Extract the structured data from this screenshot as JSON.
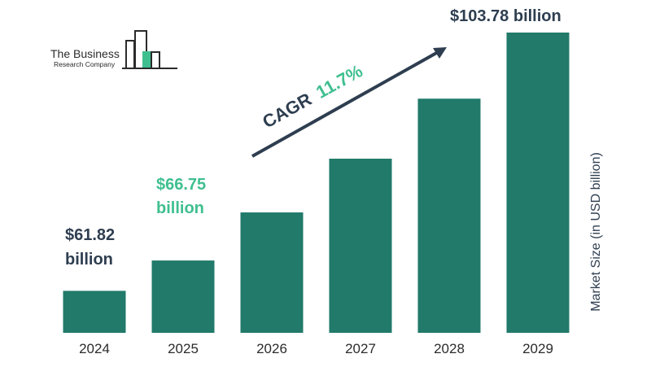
{
  "logo": {
    "line1": "The Business",
    "line2": "Research Company"
  },
  "chart_data": {
    "type": "bar",
    "categories": [
      "2024",
      "2025",
      "2026",
      "2027",
      "2028",
      "2029"
    ],
    "values": [
      61.82,
      66.75,
      74.56,
      83.29,
      93.04,
      103.78
    ],
    "ylabel": "Market Size (in USD billion)",
    "ylim": [
      55,
      105
    ],
    "grid": false,
    "bar_color": "#217a6a",
    "annotations": {
      "first": {
        "line1": "$61.82",
        "line2": "billion",
        "color": "#2e3e50"
      },
      "second": {
        "line1": "$66.75",
        "line2": "billion",
        "color": "#3fbf8f"
      },
      "last": {
        "text": "$103.78 billion",
        "color": "#2e3e50"
      },
      "cagr": {
        "label": "CAGR",
        "value": "11.7%",
        "label_color": "#2e3e50",
        "value_color": "#3fbf8f"
      }
    }
  }
}
